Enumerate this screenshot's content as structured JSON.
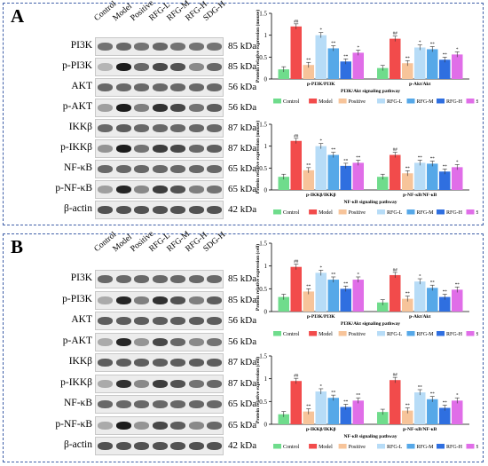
{
  "lanes": [
    "Control",
    "Model",
    "Positive",
    "RFG-L",
    "RFG-M",
    "RFG-H",
    "SDG-H"
  ],
  "colors": [
    "#6fdc8c",
    "#f24b4b",
    "#f7c49a",
    "#b7dcf7",
    "#56a8e8",
    "#2f6fe0",
    "#e06ee8"
  ],
  "panelA": {
    "letter": "A",
    "blots": [
      {
        "protein": "PI3K",
        "kda": "85 kDa",
        "intensity": [
          0.55,
          0.6,
          0.55,
          0.6,
          0.55,
          0.55,
          0.55
        ]
      },
      {
        "protein": "p-PI3K",
        "kda": "85 kDa",
        "intensity": [
          0.25,
          0.95,
          0.6,
          0.75,
          0.7,
          0.45,
          0.6
        ]
      },
      {
        "protein": "AKT",
        "kda": "56 kDa",
        "intensity": [
          0.6,
          0.6,
          0.6,
          0.6,
          0.6,
          0.6,
          0.6
        ]
      },
      {
        "protein": "p-AKT",
        "kda": "56 kDa",
        "intensity": [
          0.35,
          0.95,
          0.5,
          0.85,
          0.75,
          0.55,
          0.65
        ]
      },
      {
        "protein": "IKKβ",
        "kda": "87 kDa",
        "intensity": [
          0.6,
          0.65,
          0.6,
          0.6,
          0.6,
          0.6,
          0.6
        ]
      },
      {
        "protein": "p-IKKβ",
        "kda": "87 kDa",
        "intensity": [
          0.4,
          0.95,
          0.55,
          0.8,
          0.75,
          0.6,
          0.65
        ]
      },
      {
        "protein": "NF-κB",
        "kda": "65 kDa",
        "intensity": [
          0.6,
          0.6,
          0.6,
          0.6,
          0.6,
          0.6,
          0.6
        ]
      },
      {
        "protein": "p-NF-κB",
        "kda": "65 kDa",
        "intensity": [
          0.35,
          0.9,
          0.45,
          0.8,
          0.7,
          0.5,
          0.55
        ]
      },
      {
        "protein": "β-actin",
        "kda": "42 kDa",
        "intensity": [
          0.7,
          0.7,
          0.7,
          0.7,
          0.7,
          0.7,
          0.7
        ]
      }
    ]
  },
  "panelB": {
    "letter": "B",
    "blots": [
      {
        "protein": "PI3K",
        "kda": "85 kDa",
        "intensity": [
          0.6,
          0.6,
          0.6,
          0.6,
          0.6,
          0.6,
          0.6
        ]
      },
      {
        "protein": "p-PI3K",
        "kda": "85 kDa",
        "intensity": [
          0.3,
          0.9,
          0.5,
          0.85,
          0.7,
          0.5,
          0.65
        ]
      },
      {
        "protein": "AKT",
        "kda": "56 kDa",
        "intensity": [
          0.65,
          0.65,
          0.65,
          0.65,
          0.65,
          0.65,
          0.65
        ]
      },
      {
        "protein": "p-AKT",
        "kda": "56 kDa",
        "intensity": [
          0.3,
          0.9,
          0.4,
          0.75,
          0.6,
          0.45,
          0.55
        ]
      },
      {
        "protein": "IKKβ",
        "kda": "87 kDa",
        "intensity": [
          0.65,
          0.65,
          0.65,
          0.65,
          0.65,
          0.65,
          0.65
        ]
      },
      {
        "protein": "p-IKKβ",
        "kda": "87 kDa",
        "intensity": [
          0.3,
          0.85,
          0.45,
          0.8,
          0.7,
          0.55,
          0.6
        ]
      },
      {
        "protein": "NF-κB",
        "kda": "65 kDa",
        "intensity": [
          0.6,
          0.6,
          0.6,
          0.6,
          0.6,
          0.6,
          0.6
        ]
      },
      {
        "protein": "p-NF-κB",
        "kda": "65 kDa",
        "intensity": [
          0.3,
          0.95,
          0.4,
          0.75,
          0.65,
          0.45,
          0.6
        ]
      },
      {
        "protein": "β-actin",
        "kda": "42 kDa",
        "intensity": [
          0.7,
          0.7,
          0.7,
          0.7,
          0.7,
          0.7,
          0.7
        ]
      }
    ]
  },
  "chart_data": [
    {
      "id": "A1",
      "type": "bar",
      "ylabel": "Protein relative expression (mouse)",
      "ylim": [
        0,
        1.5
      ],
      "yticks": [
        0,
        0.5,
        1,
        1.5
      ],
      "xlabel": "PI3K/Akt signaling pathway",
      "groups": [
        "p-PI3K/PI3K",
        "p-Akt/Akt"
      ],
      "legend": [
        "Control",
        "Model",
        "Positive",
        "RFG-L",
        "RFG-M",
        "RFG-H",
        "SDG-H"
      ],
      "series": [
        {
          "name": "Control",
          "values": [
            0.22,
            0.25
          ]
        },
        {
          "name": "Model",
          "values": [
            1.2,
            0.92
          ]
        },
        {
          "name": "Positive",
          "values": [
            0.32,
            0.36
          ]
        },
        {
          "name": "RFG-L",
          "values": [
            1.0,
            0.72
          ]
        },
        {
          "name": "RFG-M",
          "values": [
            0.7,
            0.68
          ]
        },
        {
          "name": "RFG-H",
          "values": [
            0.4,
            0.44
          ]
        },
        {
          "name": "SDG-H",
          "values": [
            0.6,
            0.56
          ]
        }
      ],
      "annotations": [
        [
          "",
          "##",
          "**",
          "*",
          "**",
          "**",
          "*"
        ],
        [
          "",
          "##",
          "**",
          "*",
          "**",
          "**",
          "*"
        ]
      ]
    },
    {
      "id": "A2",
      "type": "bar",
      "ylabel": "Protein relative expression (mouse)",
      "ylim": [
        0,
        1.5
      ],
      "yticks": [
        0,
        0.5,
        1,
        1.5
      ],
      "xlabel": "NF-κB signaling pathway",
      "groups": [
        "p-IKKβ/IKKβ",
        "p-NF-κB/NF-κB"
      ],
      "legend": [
        "Control",
        "Model",
        "Positive",
        "RFG-L",
        "RFG-M",
        "RFG-H",
        "SDG-H"
      ],
      "series": [
        {
          "name": "Control",
          "values": [
            0.3,
            0.3
          ]
        },
        {
          "name": "Model",
          "values": [
            1.12,
            0.8
          ]
        },
        {
          "name": "Positive",
          "values": [
            0.45,
            0.38
          ]
        },
        {
          "name": "RFG-L",
          "values": [
            1.0,
            0.62
          ]
        },
        {
          "name": "RFG-M",
          "values": [
            0.8,
            0.6
          ]
        },
        {
          "name": "RFG-H",
          "values": [
            0.55,
            0.42
          ]
        },
        {
          "name": "SDG-H",
          "values": [
            0.62,
            0.52
          ]
        }
      ],
      "annotations": [
        [
          "",
          "##",
          "**",
          "*",
          "**",
          "**",
          "**"
        ],
        [
          "",
          "##",
          "**",
          "**",
          "**",
          "**",
          "*"
        ]
      ]
    },
    {
      "id": "B1",
      "type": "bar",
      "ylabel": "Protein relative expression (cell)",
      "ylim": [
        0,
        1.5
      ],
      "yticks": [
        0,
        0.5,
        1,
        1.5
      ],
      "xlabel": "PI3K/Akt signaling pathway",
      "groups": [
        "p-PI3K/PI3K",
        "p-Akt/Akt"
      ],
      "legend": [
        "Control",
        "Model",
        "Positive",
        "RFG-L",
        "RFG-M",
        "RFG-H",
        "SDG-H"
      ],
      "series": [
        {
          "name": "Control",
          "values": [
            0.32,
            0.2
          ]
        },
        {
          "name": "Model",
          "values": [
            0.98,
            0.8
          ]
        },
        {
          "name": "Positive",
          "values": [
            0.44,
            0.28
          ]
        },
        {
          "name": "RFG-L",
          "values": [
            0.85,
            0.66
          ]
        },
        {
          "name": "RFG-M",
          "values": [
            0.7,
            0.52
          ]
        },
        {
          "name": "RFG-H",
          "values": [
            0.5,
            0.32
          ]
        },
        {
          "name": "SDG-H",
          "values": [
            0.7,
            0.48
          ]
        }
      ],
      "annotations": [
        [
          "",
          "##",
          "**",
          "*",
          "**",
          "**",
          "*"
        ],
        [
          "",
          "##",
          "**",
          "*",
          "**",
          "**",
          "**"
        ]
      ]
    },
    {
      "id": "B2",
      "type": "bar",
      "ylabel": "Protein relative expression (cell)",
      "ylim": [
        0,
        1.5
      ],
      "yticks": [
        0,
        0.5,
        1,
        1.5
      ],
      "xlabel": "NF-κB signaling pathway",
      "groups": [
        "p-IKKβ/IKKβ",
        "p-NF-κB/NF-κB"
      ],
      "legend": [
        "Control",
        "Model",
        "Positive",
        "RFG-L",
        "RFG-M",
        "RFG-H",
        "SDG-H"
      ],
      "series": [
        {
          "name": "Control",
          "values": [
            0.22,
            0.27
          ]
        },
        {
          "name": "Model",
          "values": [
            0.95,
            0.97
          ]
        },
        {
          "name": "Positive",
          "values": [
            0.28,
            0.3
          ]
        },
        {
          "name": "RFG-L",
          "values": [
            0.72,
            0.7
          ]
        },
        {
          "name": "RFG-M",
          "values": [
            0.58,
            0.55
          ]
        },
        {
          "name": "RFG-H",
          "values": [
            0.38,
            0.36
          ]
        },
        {
          "name": "SDG-H",
          "values": [
            0.52,
            0.52
          ]
        }
      ],
      "annotations": [
        [
          "",
          "##",
          "**",
          "*",
          "**",
          "**",
          "**"
        ],
        [
          "",
          "##",
          "**",
          "**",
          "**",
          "**",
          "*"
        ]
      ]
    }
  ]
}
